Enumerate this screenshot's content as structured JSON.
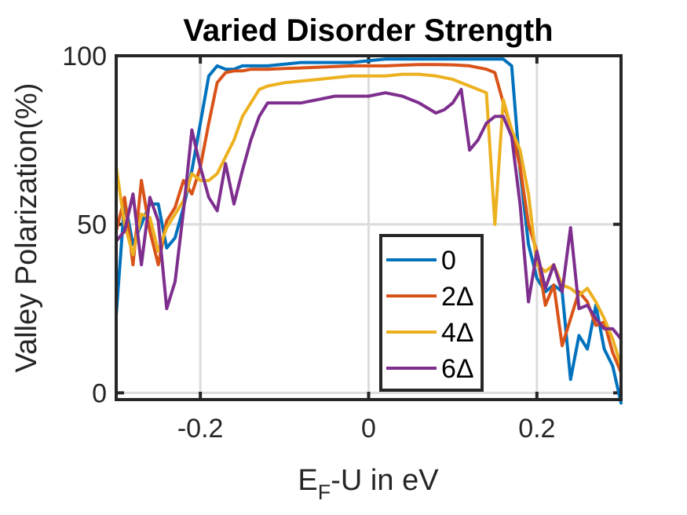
{
  "chart_data": {
    "type": "line",
    "title": "Varied Disorder Strength",
    "xlabel": "E",
    "xlabel_sub": "F",
    "xlabel_rest": "-U in eV",
    "ylabel": "Valley Polarization(%)",
    "xlim": [
      -0.3,
      0.3
    ],
    "ylim": [
      -2,
      100
    ],
    "xticks": [
      -0.2,
      0,
      0.2
    ],
    "xtick_labels": [
      "-0.2",
      "0",
      "0.2"
    ],
    "yticks": [
      0,
      50,
      100
    ],
    "ytick_labels": [
      "0",
      "50",
      "100"
    ],
    "grid": true,
    "legend_position": "bottom-right",
    "series": [
      {
        "name": "0",
        "color": "#0072BD",
        "x": [
          -0.3,
          -0.29,
          -0.28,
          -0.27,
          -0.26,
          -0.25,
          -0.24,
          -0.23,
          -0.22,
          -0.21,
          -0.2,
          -0.19,
          -0.18,
          -0.17,
          -0.16,
          -0.15,
          -0.14,
          -0.13,
          -0.12,
          -0.1,
          -0.08,
          -0.06,
          -0.04,
          -0.02,
          0,
          0.02,
          0.04,
          0.06,
          0.08,
          0.1,
          0.12,
          0.14,
          0.16,
          0.17,
          0.18,
          0.19,
          0.2,
          0.21,
          0.22,
          0.23,
          0.24,
          0.25,
          0.26,
          0.27,
          0.28,
          0.29,
          0.3
        ],
        "values": [
          23,
          57,
          44,
          50,
          56,
          56,
          43,
          46,
          55,
          66,
          80,
          94,
          97,
          96,
          96,
          97,
          97,
          97,
          97,
          97.5,
          98,
          98,
          98,
          98,
          98.5,
          99,
          99,
          99,
          99,
          99,
          99,
          99,
          99,
          97,
          66,
          44,
          34,
          30,
          32,
          30,
          4,
          17,
          13,
          26,
          13,
          8,
          -3
        ]
      },
      {
        "name": "2Δ",
        "color": "#D95319",
        "x": [
          -0.3,
          -0.29,
          -0.28,
          -0.27,
          -0.26,
          -0.25,
          -0.24,
          -0.23,
          -0.22,
          -0.21,
          -0.2,
          -0.19,
          -0.18,
          -0.17,
          -0.16,
          -0.15,
          -0.14,
          -0.12,
          -0.1,
          -0.08,
          -0.06,
          -0.04,
          -0.02,
          0,
          0.02,
          0.04,
          0.06,
          0.08,
          0.1,
          0.12,
          0.14,
          0.15,
          0.16,
          0.17,
          0.18,
          0.19,
          0.2,
          0.21,
          0.22,
          0.23,
          0.24,
          0.25,
          0.26,
          0.27,
          0.28,
          0.29,
          0.3
        ],
        "values": [
          48,
          58,
          38,
          63,
          48,
          38,
          51,
          55,
          63,
          59,
          67,
          80,
          92,
          95,
          95.5,
          95.5,
          96,
          96,
          96.2,
          96.4,
          96.6,
          96.8,
          97,
          97,
          97,
          97.2,
          97.4,
          97.4,
          97.3,
          97,
          96,
          95,
          86,
          78,
          67,
          50,
          42,
          26,
          32,
          14,
          22,
          30,
          27,
          20,
          21,
          12,
          6
        ]
      },
      {
        "name": "4Δ",
        "color": "#EDB120",
        "x": [
          -0.3,
          -0.29,
          -0.28,
          -0.27,
          -0.26,
          -0.25,
          -0.24,
          -0.23,
          -0.22,
          -0.21,
          -0.2,
          -0.19,
          -0.18,
          -0.17,
          -0.16,
          -0.15,
          -0.14,
          -0.13,
          -0.12,
          -0.11,
          -0.1,
          -0.08,
          -0.06,
          -0.04,
          -0.02,
          0,
          0.02,
          0.04,
          0.06,
          0.08,
          0.1,
          0.12,
          0.14,
          0.15,
          0.16,
          0.17,
          0.18,
          0.19,
          0.2,
          0.21,
          0.22,
          0.23,
          0.24,
          0.25,
          0.26,
          0.27,
          0.28,
          0.29,
          0.3
        ],
        "values": [
          67,
          50,
          41,
          53,
          52,
          42,
          49,
          53,
          57,
          65,
          63,
          63,
          65,
          70,
          75,
          82,
          86,
          90,
          91,
          91.5,
          92,
          92.5,
          93,
          93.5,
          94,
          94,
          94,
          94.5,
          94.5,
          94,
          93,
          91,
          89,
          50,
          87,
          78,
          72,
          59,
          38,
          36,
          38,
          32,
          31,
          29,
          31,
          27,
          22,
          16,
          8
        ]
      },
      {
        "name": "6Δ",
        "color": "#7E2F8E",
        "x": [
          -0.3,
          -0.29,
          -0.28,
          -0.27,
          -0.26,
          -0.25,
          -0.24,
          -0.23,
          -0.22,
          -0.21,
          -0.2,
          -0.19,
          -0.18,
          -0.17,
          -0.16,
          -0.15,
          -0.14,
          -0.13,
          -0.12,
          -0.11,
          -0.1,
          -0.08,
          -0.06,
          -0.04,
          -0.02,
          0,
          0.02,
          0.04,
          0.06,
          0.08,
          0.09,
          0.1,
          0.11,
          0.12,
          0.13,
          0.14,
          0.15,
          0.16,
          0.17,
          0.18,
          0.19,
          0.2,
          0.21,
          0.22,
          0.23,
          0.24,
          0.25,
          0.26,
          0.27,
          0.28,
          0.29,
          0.3
        ],
        "values": [
          45,
          48,
          59,
          38,
          58,
          51,
          25,
          33,
          54,
          78,
          67,
          58,
          54,
          68,
          56,
          66,
          75,
          82,
          86,
          86,
          86,
          86,
          87,
          88,
          88,
          88,
          89,
          88,
          86,
          83,
          84,
          86,
          90,
          72,
          75,
          80,
          82,
          82,
          76,
          56,
          27,
          42,
          31,
          38,
          30,
          49,
          25,
          26,
          22,
          19,
          19,
          16
        ]
      }
    ]
  }
}
